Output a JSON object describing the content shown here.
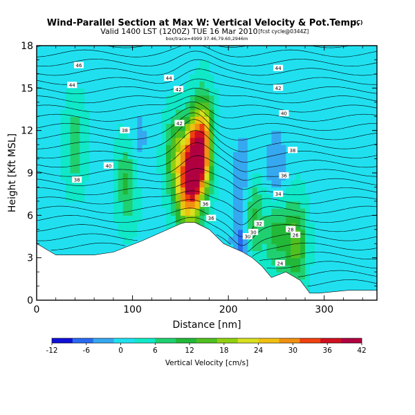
{
  "chart_data": {
    "type": "heatmap",
    "title": "Wind-Parallel Section at Max W: Vertical Velocity & Pot.Temp.",
    "title_mark": "(C)",
    "subtitle": "Valid 1400 LST (1200Z) TUE 16 Mar 2010",
    "subtitle_suffix": "[fcst cycle@0344Z]",
    "info_line": "box/trace=4999 37.46,79.60,2946m",
    "xlabel": "Distance [nm]",
    "ylabel": "Height [Kft MSL]",
    "x_range": [
      0,
      355
    ],
    "y_range": [
      0,
      18
    ],
    "x_ticks": [
      "0",
      "100",
      "200",
      "300"
    ],
    "y_ticks": [
      "0",
      "3",
      "6",
      "9",
      "12",
      "15",
      "18"
    ],
    "colorbar": {
      "label": "Vertical Velocity [cm/s]",
      "ticks": [
        "-12",
        "-6",
        "0",
        "6",
        "12",
        "18",
        "24",
        "30",
        "36",
        "42"
      ],
      "range": [
        -12,
        42
      ],
      "colors": [
        "#1010d8",
        "#2a6af0",
        "#35a8f0",
        "#20e0f0",
        "#10e8c8",
        "#20d070",
        "#22b838",
        "#50c020",
        "#90d010",
        "#d8e020",
        "#f0c010",
        "#f09010",
        "#f04010",
        "#d01020",
        "#b00040"
      ]
    },
    "contour_labels": [
      "46",
      "44",
      "44",
      "44",
      "42",
      "42",
      "42",
      "40",
      "40",
      "38",
      "38",
      "38",
      "36",
      "36",
      "36",
      "34",
      "32",
      "30",
      "30",
      "28",
      "26",
      "24"
    ],
    "terrain_profile": {
      "x_nm": [
        0,
        5,
        20,
        60,
        80,
        110,
        150,
        155,
        165,
        180,
        195,
        215,
        225,
        235,
        245,
        260,
        275,
        285,
        295,
        310,
        325,
        355
      ],
      "height_kft": [
        4,
        3.8,
        3.2,
        3.2,
        3.4,
        4.2,
        5.4,
        5.5,
        5.5,
        5.0,
        4.0,
        3.4,
        3.0,
        2.4,
        1.6,
        2.0,
        1.4,
        0.5,
        0.5,
        0.6,
        0.7,
        0.7
      ]
    },
    "vertical_velocity_features": [
      {
        "x_nm": 165,
        "height_kft": 9.5,
        "cm_s": 40
      },
      {
        "x_nm": 155,
        "height_kft": 8,
        "cm_s": 22
      },
      {
        "x_nm": 175,
        "height_kft": 11,
        "cm_s": 26
      },
      {
        "x_nm": 145,
        "height_kft": 10,
        "cm_s": 14
      },
      {
        "x_nm": 95,
        "height_kft": 8.5,
        "cm_s": 10
      },
      {
        "x_nm": 225,
        "height_kft": 5.5,
        "cm_s": 12
      },
      {
        "x_nm": 250,
        "height_kft": 5,
        "cm_s": 10
      },
      {
        "x_nm": 270,
        "height_kft": 4,
        "cm_s": 14
      },
      {
        "x_nm": 40,
        "height_kft": 11,
        "cm_s": 7
      },
      {
        "x_nm": 215,
        "height_kft": 9,
        "cm_s": -6
      },
      {
        "x_nm": 250,
        "height_kft": 9,
        "cm_s": -7
      },
      {
        "x_nm": 105,
        "height_kft": 11,
        "cm_s": -5
      },
      {
        "x_nm": 215,
        "height_kft": 4,
        "cm_s": -10
      }
    ]
  }
}
